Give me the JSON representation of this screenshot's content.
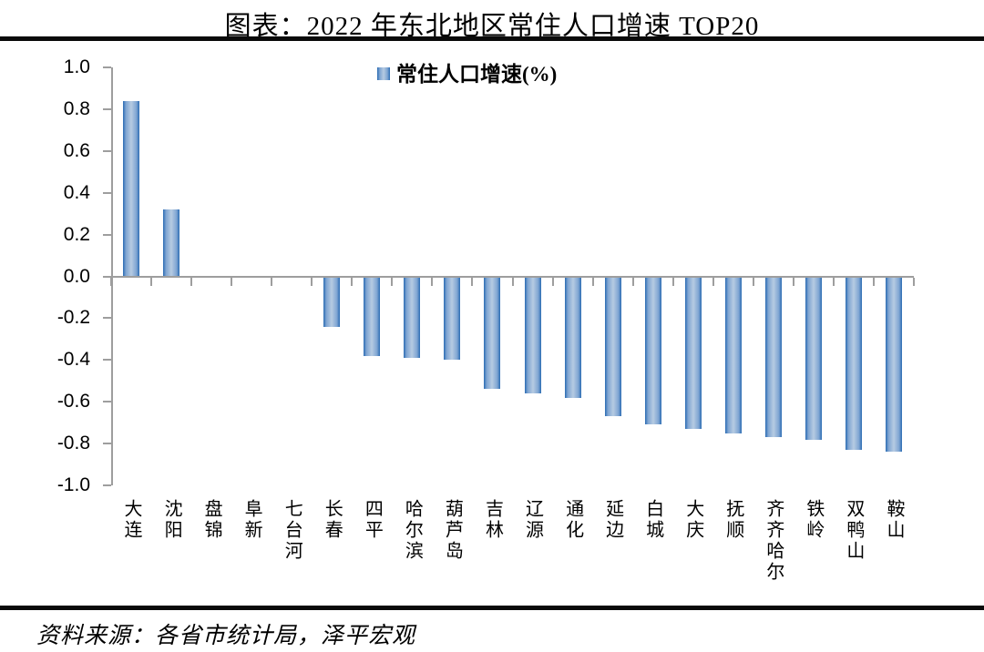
{
  "header": {
    "title": "图表：2022 年东北地区常住人口增速 TOP20"
  },
  "footer": {
    "source": "资料来源：各省市统计局，泽平宏观"
  },
  "colors": {
    "bar_edge": "#2b6cb3",
    "bar_center": "#b6cbe2",
    "axis_gray": "#9e9e9e",
    "rule_black": "#0a0a0a"
  },
  "chart_data": {
    "type": "bar",
    "title": "图表：2022 年东北地区常住人口增速 TOP20",
    "legend_label": "常住人口增速(%)",
    "legend_position": "top-center",
    "categories": [
      "大连",
      "沈阳",
      "盘锦",
      "阜新",
      "七台河",
      "长春",
      "四平",
      "哈尔滨",
      "葫芦岛",
      "吉林",
      "辽源",
      "通化",
      "延边",
      "白城",
      "大庆",
      "抚顺",
      "齐齐哈尔",
      "铁岭",
      "双鸭山",
      "鞍山"
    ],
    "values": [
      0.84,
      0.32,
      0.0,
      0.0,
      0.0,
      -0.24,
      -0.38,
      -0.39,
      -0.4,
      -0.54,
      -0.56,
      -0.58,
      -0.67,
      -0.71,
      -0.73,
      -0.75,
      -0.77,
      -0.78,
      -0.83,
      -0.84
    ],
    "xlabel": "",
    "ylabel": "",
    "ylim": [
      -1.0,
      1.0
    ],
    "ytick_step": 0.2,
    "ytick_labels": [
      "1.0",
      "0.8",
      "0.6",
      "0.4",
      "0.2",
      "0.0",
      "-0.2",
      "-0.4",
      "-0.6",
      "-0.8",
      "-1.0"
    ],
    "grid": false
  }
}
